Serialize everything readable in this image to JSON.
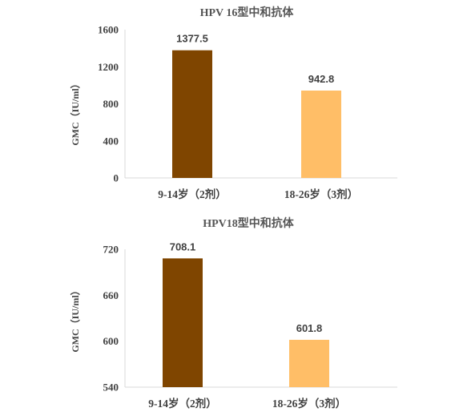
{
  "chart_data": [
    {
      "type": "bar",
      "title": "HPV 16型中和抗体",
      "ylabel": "GMC（IU/ml）",
      "categories": [
        "9-14岁（2剂）",
        "18-26岁（3剂）"
      ],
      "values": [
        1377.5,
        942.8
      ],
      "value_labels": [
        "1377.5",
        "942.8"
      ],
      "bar_colors": [
        "#7f4500",
        "#ffbe67"
      ],
      "ylim": [
        0,
        1600
      ],
      "yticks": [
        0,
        400,
        800,
        1200,
        1600
      ],
      "ytick_labels": [
        "0",
        "400",
        "800",
        "1200",
        "1600"
      ],
      "grid": false,
      "legend": "none"
    },
    {
      "type": "bar",
      "title": "HPV18型中和抗体",
      "ylabel": "GMC（IU/ml）",
      "categories": [
        "9-14岁（2剂）",
        "18-26岁（3剂）"
      ],
      "values": [
        708.1,
        601.8
      ],
      "value_labels": [
        "708.1",
        "601.8"
      ],
      "bar_colors": [
        "#7f4500",
        "#ffbe67"
      ],
      "ylim": [
        540,
        720
      ],
      "yticks": [
        540,
        600,
        660,
        720
      ],
      "ytick_labels": [
        "540",
        "600",
        "660",
        "720"
      ],
      "grid": false,
      "legend": "none"
    }
  ]
}
